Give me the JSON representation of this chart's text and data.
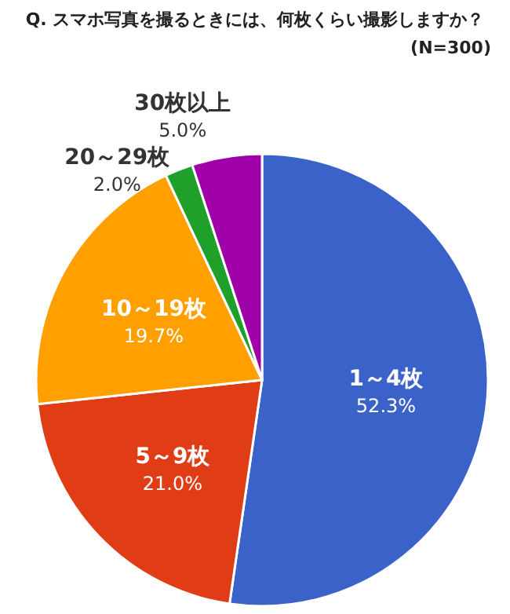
{
  "chart_data": {
    "type": "pie",
    "title": "Q. スマホ写真を撮るときには、何枚くらい撮影しますか？",
    "subtitle": "(N=300)",
    "categories": [
      "1～4枚",
      "5～9枚",
      "10～19枚",
      "20～29枚",
      "30枚以上"
    ],
    "values": [
      52.3,
      21.0,
      19.7,
      2.0,
      5.0
    ],
    "value_labels": [
      "52.3%",
      "21.0%",
      "19.7%",
      "2.0%",
      "5.0%"
    ],
    "colors": [
      "#3a62c8",
      "#e03c16",
      "#ffa000",
      "#1fa02a",
      "#a000a8"
    ]
  }
}
